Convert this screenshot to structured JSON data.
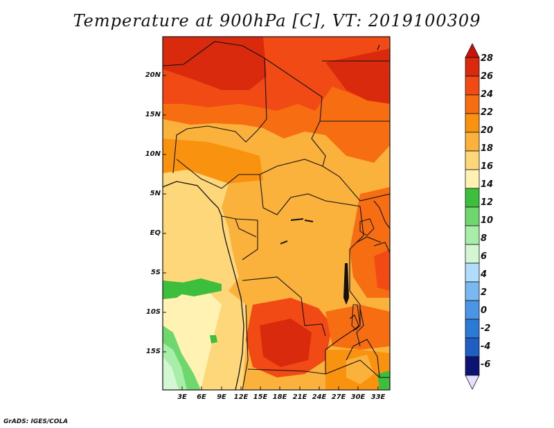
{
  "title": "Temperature at 900hPa [C], VT: 2019100309",
  "map": {
    "variable": "Temperature at 900hPa",
    "units": "C",
    "valid_time": "2019100309",
    "lat_labels": [
      "20N",
      "15N",
      "10N",
      "5N",
      "EQ",
      "5S",
      "10S",
      "15S"
    ],
    "lon_labels": [
      "3E",
      "6E",
      "9E",
      "12E",
      "15E",
      "18E",
      "21E",
      "24E",
      "27E",
      "30E",
      "33E"
    ]
  },
  "colorbar": {
    "labels": [
      "28",
      "26",
      "24",
      "22",
      "20",
      "18",
      "16",
      "14",
      "12",
      "10",
      "8",
      "6",
      "4",
      "2",
      "0",
      "-2",
      "-4",
      "-6"
    ],
    "colors": [
      "#d92a0e",
      "#f24a14",
      "#f76d12",
      "#f9920f",
      "#fbb23c",
      "#fdd77a",
      "#fff2b3",
      "#3dbf3d",
      "#6ed86e",
      "#a8eea8",
      "#d3f7d3",
      "#b2dcfb",
      "#7ab8f1",
      "#4a95e5",
      "#2a7ad6",
      "#1f5fc4",
      "#1b47ad",
      "#143295",
      "#0c1370",
      "#e6e0ff"
    ]
  },
  "credit": "GrADS: IGES/COLA"
}
